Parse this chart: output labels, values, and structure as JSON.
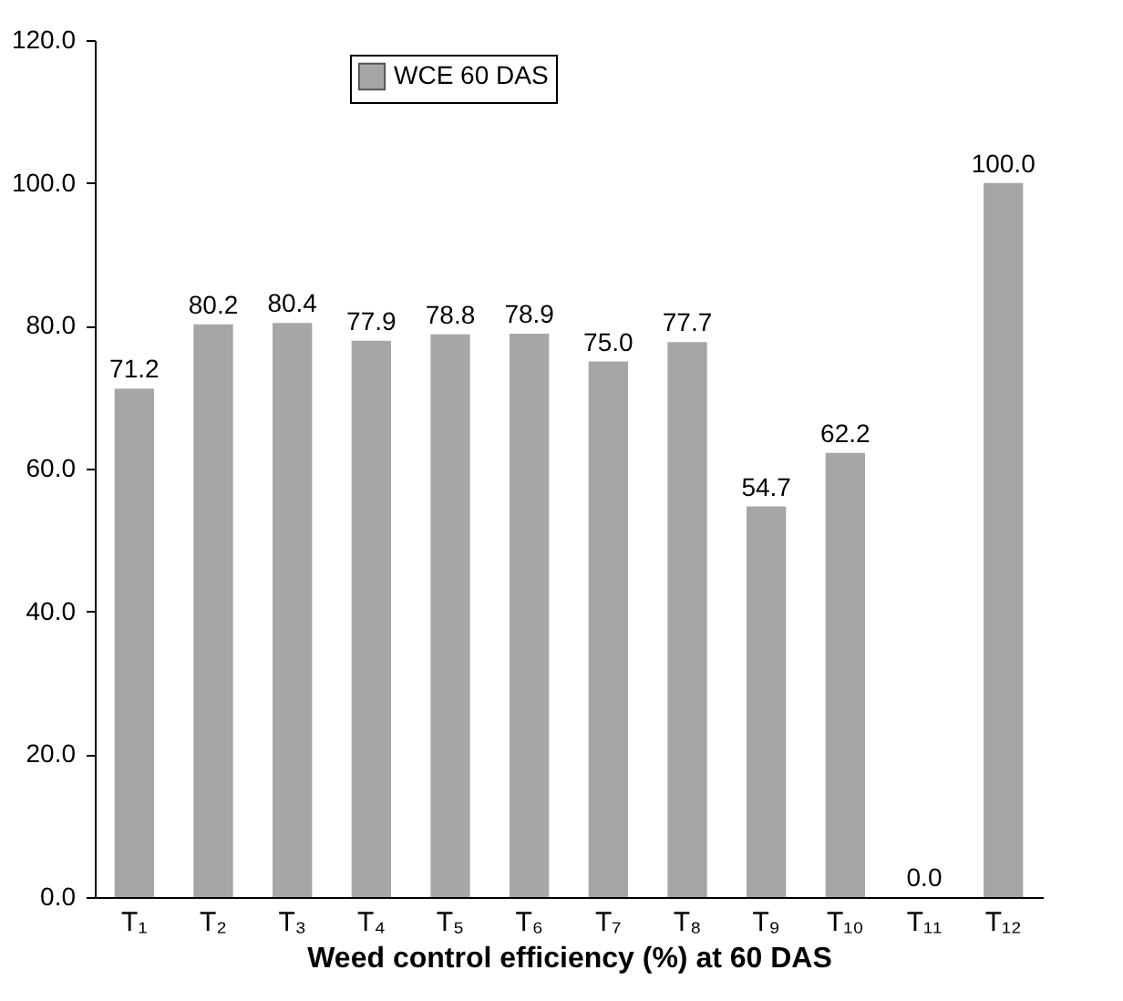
{
  "chart_data": {
    "type": "bar",
    "xlabel": "Weed control efficiency (%) at 60 DAS",
    "categories": [
      "T₁",
      "T₂",
      "T₃",
      "T₄",
      "T₅",
      "T₆",
      "T₇",
      "T₈",
      "T₉",
      "T₁₀",
      "T₁₁",
      "T₁₂"
    ],
    "series": [
      {
        "name": "WCE 60 DAS",
        "color": "#a6a6a6",
        "values": [
          71.2,
          80.2,
          80.4,
          77.9,
          78.8,
          78.9,
          75.0,
          77.7,
          54.7,
          62.2,
          0.0,
          100.0
        ]
      }
    ],
    "value_labels": [
      "71.2",
      "80.2",
      "80.4",
      "77.9",
      "78.8",
      "78.9",
      "75.0",
      "77.7",
      "54.7",
      "62.2",
      "0.0",
      "100.0"
    ],
    "ylim": [
      0,
      120
    ],
    "yticks": [
      {
        "value": 0,
        "label": "0.0"
      },
      {
        "value": 20,
        "label": "20.0"
      },
      {
        "value": 40,
        "label": "40.0"
      },
      {
        "value": 60,
        "label": "60.0"
      },
      {
        "value": 80,
        "label": "80.0"
      },
      {
        "value": 100,
        "label": "100.0"
      },
      {
        "value": 120,
        "label": "120.0"
      }
    ],
    "grid": false,
    "legend": "top"
  }
}
